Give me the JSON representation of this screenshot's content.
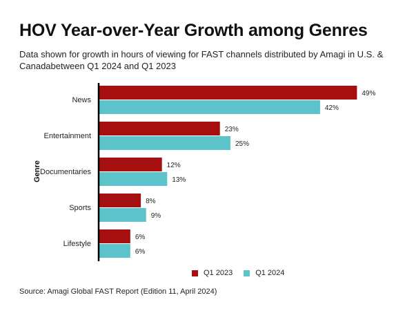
{
  "title": "HOV Year-over-Year Growth among Genres",
  "subtitle": "Data shown for growth in hours of viewing for FAST channels distributed by Amagi in U.S. & Canadabetween Q1 2024 and Q1 2023",
  "source": "Source: Amagi Global FAST Report (Edition 11, April 2024)",
  "colors": {
    "q1_2023": "#a50f0f",
    "q1_2024": "#5bc3c9"
  },
  "chart_data": {
    "type": "bar",
    "orientation": "horizontal",
    "categories": [
      "News",
      "Entertainment",
      "Documentaries",
      "Sports",
      "Lifestyle"
    ],
    "series": [
      {
        "name": "Q1 2023",
        "values": [
          49,
          23,
          12,
          8,
          6
        ]
      },
      {
        "name": "Q1 2024",
        "values": [
          42,
          25,
          13,
          9,
          6
        ]
      }
    ],
    "value_suffix": "%",
    "ylabel": "Genre",
    "xlabel": "",
    "xlim": [
      0,
      50
    ],
    "grid": false,
    "legend": "bottom"
  }
}
